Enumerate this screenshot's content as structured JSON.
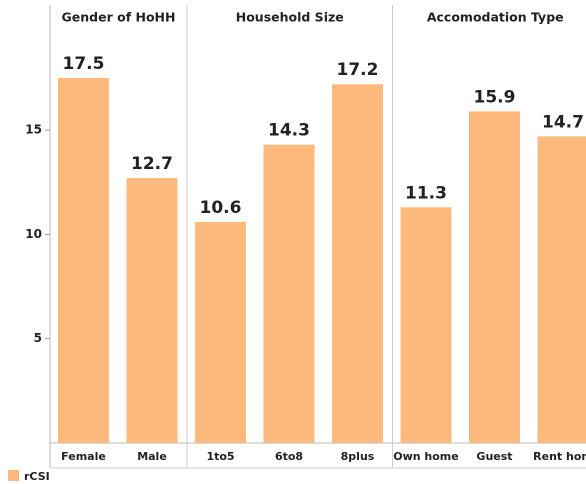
{
  "chart_data": {
    "type": "bar",
    "series": [
      {
        "name": "rCSI",
        "color": "#fdba7c"
      }
    ],
    "facets": [
      {
        "title": "Gender of HoHH",
        "categories": [
          "Female",
          "Male"
        ],
        "values": [
          17.5,
          12.7
        ]
      },
      {
        "title": "Household Size",
        "categories": [
          "1to5",
          "6to8",
          "8plus"
        ],
        "values": [
          10.6,
          14.3,
          17.2
        ]
      },
      {
        "title": "Accomodation Type",
        "categories": [
          "Own home",
          "Guest",
          "Rent hom"
        ],
        "values": [
          11.3,
          15.9,
          14.7
        ]
      }
    ],
    "ylim": [
      0,
      19.8
    ],
    "yticks": [
      5,
      10,
      15
    ]
  }
}
